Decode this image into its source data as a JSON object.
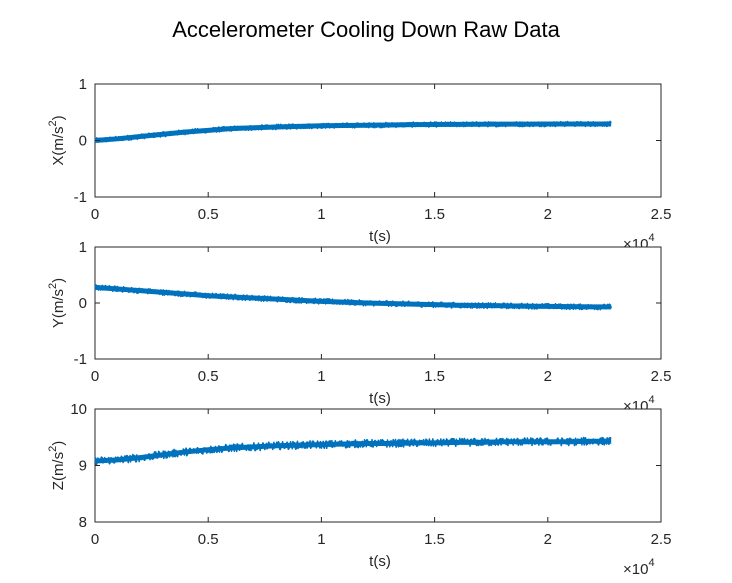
{
  "title": "Accelerometer Cooling Down Raw Data",
  "style": {
    "line_color": "#0072BD",
    "axes_color": "#262626",
    "background": "#ffffff"
  },
  "chart_data": [
    {
      "type": "line",
      "xlabel": "t(s)",
      "ylabel": "X(m/s^2)",
      "ylabel_base": "X(m/s",
      "ylabel_exp": "2",
      "ylabel_close": ")",
      "xlim": [
        0,
        25000
      ],
      "ylim": [
        -1,
        1
      ],
      "x_ticks": [
        0,
        5000,
        10000,
        15000,
        20000,
        25000
      ],
      "x_tick_labels": [
        "0",
        "0.5",
        "1",
        "1.5",
        "2",
        "2.5"
      ],
      "y_ticks": [
        -1,
        0,
        1
      ],
      "y_tick_labels": [
        "-1",
        "0",
        "1"
      ],
      "x_multiplier": {
        "base": "×10",
        "exp": "4"
      },
      "grid": false,
      "series": [
        {
          "x": [
            0,
            1000,
            2000,
            3000,
            4000,
            5000,
            6000,
            7000,
            8000,
            9000,
            10000,
            11000,
            12000,
            13000,
            14000,
            15000,
            16000,
            17000,
            18000,
            19000,
            20000,
            21000,
            22000,
            22800
          ],
          "y": [
            0.0,
            0.03,
            0.07,
            0.11,
            0.15,
            0.18,
            0.21,
            0.225,
            0.24,
            0.25,
            0.26,
            0.265,
            0.27,
            0.275,
            0.28,
            0.283,
            0.285,
            0.287,
            0.289,
            0.29,
            0.291,
            0.292,
            0.293,
            0.293
          ],
          "noise_band": 0.045
        }
      ]
    },
    {
      "type": "line",
      "xlabel": "t(s)",
      "ylabel": "Y(m/s^2)",
      "ylabel_base": "Y(m/s",
      "ylabel_exp": "2",
      "ylabel_close": ")",
      "xlim": [
        0,
        25000
      ],
      "ylim": [
        -1,
        1
      ],
      "x_ticks": [
        0,
        5000,
        10000,
        15000,
        20000,
        25000
      ],
      "x_tick_labels": [
        "0",
        "0.5",
        "1",
        "1.5",
        "2",
        "2.5"
      ],
      "y_ticks": [
        -1,
        0,
        1
      ],
      "y_tick_labels": [
        "-1",
        "0",
        "1"
      ],
      "x_multiplier": {
        "base": "×10",
        "exp": "4"
      },
      "grid": false,
      "series": [
        {
          "x": [
            0,
            1000,
            2000,
            3000,
            4000,
            5000,
            6000,
            7000,
            8000,
            9000,
            10000,
            11000,
            12000,
            13000,
            14000,
            15000,
            16000,
            17000,
            18000,
            19000,
            20000,
            21000,
            22000,
            22800
          ],
          "y": [
            0.28,
            0.25,
            0.22,
            0.19,
            0.16,
            0.13,
            0.11,
            0.09,
            0.07,
            0.05,
            0.03,
            0.015,
            0.0,
            -0.01,
            -0.02,
            -0.03,
            -0.04,
            -0.045,
            -0.05,
            -0.055,
            -0.06,
            -0.065,
            -0.07,
            -0.07
          ],
          "noise_band": 0.05
        }
      ]
    },
    {
      "type": "line",
      "xlabel": "t(s)",
      "ylabel": "Z(m/s^2)",
      "ylabel_base": "Z(m/s",
      "ylabel_exp": "2",
      "ylabel_close": ")",
      "xlim": [
        0,
        25000
      ],
      "ylim": [
        8,
        10
      ],
      "x_ticks": [
        0,
        5000,
        10000,
        15000,
        20000,
        25000
      ],
      "x_tick_labels": [
        "0",
        "0.5",
        "1",
        "1.5",
        "2",
        "2.5"
      ],
      "y_ticks": [
        8,
        9,
        10
      ],
      "y_tick_labels": [
        "8",
        "9",
        "10"
      ],
      "x_multiplier": {
        "base": "×10",
        "exp": "4"
      },
      "grid": false,
      "series": [
        {
          "x": [
            0,
            1000,
            2000,
            3000,
            4000,
            5000,
            6000,
            7000,
            8000,
            9000,
            10000,
            11000,
            12000,
            13000,
            14000,
            15000,
            16000,
            17000,
            18000,
            19000,
            20000,
            21000,
            22000,
            22800
          ],
          "y": [
            9.08,
            9.1,
            9.14,
            9.19,
            9.24,
            9.28,
            9.31,
            9.33,
            9.35,
            9.36,
            9.37,
            9.38,
            9.39,
            9.39,
            9.4,
            9.4,
            9.41,
            9.41,
            9.42,
            9.42,
            9.42,
            9.42,
            9.43,
            9.43
          ],
          "noise_band": 0.07
        }
      ]
    }
  ]
}
